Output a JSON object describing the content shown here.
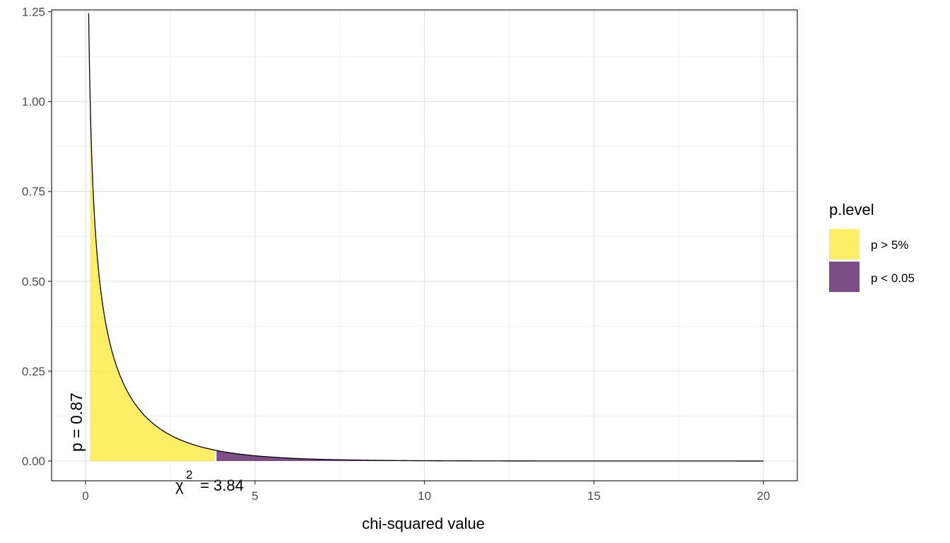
{
  "chart_data": {
    "type": "area",
    "title": "",
    "xlabel": "chi-squared value",
    "ylabel": "",
    "xlim": [
      -1,
      21
    ],
    "ylim": [
      -0.055,
      1.255
    ],
    "x_ticks": [
      0,
      5,
      10,
      15,
      20
    ],
    "x_tick_labels": [
      "0",
      "5",
      "10",
      "15",
      "20"
    ],
    "y_ticks": [
      0,
      0.25,
      0.5,
      0.75,
      1.0,
      1.25
    ],
    "y_tick_labels": [
      "0.00",
      "0.25",
      "0.50",
      "0.75",
      "1.00",
      "1.25"
    ],
    "grid": true,
    "distribution": "chi-squared density, df = 1",
    "curve_x_range": [
      0,
      20
    ],
    "critical_value": 3.84,
    "observed_statistic": 0.13,
    "series": [
      {
        "name": "p > 5%",
        "color": "#FDE725",
        "x_range": [
          0.13,
          3.84
        ]
      },
      {
        "name": "p < 0.05",
        "color": "#440154",
        "x_range": [
          3.84,
          20
        ]
      }
    ],
    "legend": {
      "title": "p.level",
      "position": "right",
      "entries": [
        "p > 5%",
        "p < 0.05"
      ]
    },
    "annotations": {
      "p_label": "p = 0.87",
      "chi_symbol": "χ",
      "chi_superscript": "2",
      "critical_label": "= 3.84"
    }
  }
}
